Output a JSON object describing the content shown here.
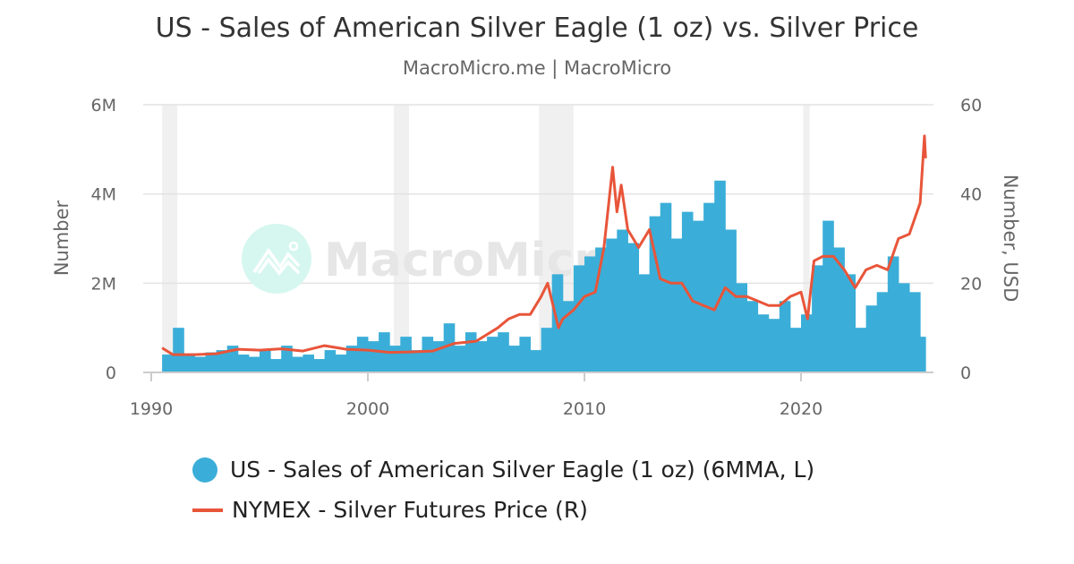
{
  "title": "US - Sales of American Silver Eagle (1 oz) vs. Silver Price",
  "subtitle": "MacroMicro.me | MacroMicro",
  "watermark": "MacroMicro",
  "colors": {
    "sales": "#3aaed8",
    "price": "#e8553a",
    "recession": "#f0f0f0"
  },
  "chart_data": {
    "type": "bar+line",
    "xlabel": "",
    "x_ticks": [
      "1990",
      "2000",
      "2010",
      "2020"
    ],
    "xlim": [
      1989.6,
      2026.1
    ],
    "y_left": {
      "label": "Number",
      "ticks": [
        "0",
        "2M",
        "4M",
        "6M"
      ],
      "lim": [
        0,
        6000000
      ]
    },
    "y_right": {
      "label": "Number, USD",
      "ticks": [
        "0",
        "20",
        "40",
        "60"
      ],
      "lim": [
        0,
        60
      ]
    },
    "grid": true,
    "legend_placement": "bottom",
    "recessions": [
      [
        1990.5,
        1991.2
      ],
      [
        2001.2,
        2001.9
      ],
      [
        2007.9,
        2009.5
      ],
      [
        2020.1,
        2020.4
      ]
    ],
    "series": [
      {
        "name": "US - Sales of American Silver Eagle (1 oz) (6MMA, L)",
        "type": "bar",
        "x": [
          1990.5,
          1991,
          1991.5,
          1992,
          1992.5,
          1993,
          1993.5,
          1994,
          1994.5,
          1995,
          1995.5,
          1996,
          1996.5,
          1997,
          1997.5,
          1998,
          1998.5,
          1999,
          1999.5,
          2000,
          2000.5,
          2001,
          2001.5,
          2002,
          2002.5,
          2003,
          2003.5,
          2004,
          2004.5,
          2005,
          2005.5,
          2006,
          2006.5,
          2007,
          2007.5,
          2008,
          2008.5,
          2009,
          2009.5,
          2010,
          2010.5,
          2011,
          2011.5,
          2012,
          2012.5,
          2013,
          2013.5,
          2014,
          2014.5,
          2015,
          2015.5,
          2016,
          2016.5,
          2017,
          2017.5,
          2018,
          2018.5,
          2019,
          2019.5,
          2020,
          2020.5,
          2021,
          2021.5,
          2022,
          2022.5,
          2023,
          2023.5,
          2024,
          2024.5,
          2025,
          2025.5
        ],
        "values": [
          400000,
          1000000,
          400000,
          350000,
          450000,
          500000,
          600000,
          400000,
          350000,
          500000,
          300000,
          600000,
          350000,
          400000,
          300000,
          500000,
          400000,
          600000,
          800000,
          700000,
          900000,
          600000,
          800000,
          500000,
          800000,
          700000,
          1100000,
          600000,
          900000,
          700000,
          800000,
          900000,
          600000,
          800000,
          500000,
          1000000,
          2200000,
          1600000,
          2400000,
          2600000,
          2800000,
          3000000,
          3200000,
          2900000,
          2200000,
          3500000,
          3800000,
          3000000,
          3600000,
          3400000,
          3800000,
          4300000,
          3200000,
          2000000,
          1600000,
          1300000,
          1200000,
          1600000,
          1000000,
          1300000,
          2400000,
          3400000,
          2800000,
          2200000,
          1000000,
          1500000,
          1800000,
          2600000,
          2000000,
          1800000,
          800000
        ]
      },
      {
        "name": "NYMEX - Silver Futures Price (R)",
        "type": "line",
        "x": [
          1990.5,
          1991,
          1992,
          1993,
          1994,
          1995,
          1996,
          1997,
          1998,
          1999,
          2000,
          2001,
          2002,
          2003,
          2004,
          2005,
          2006,
          2006.5,
          2007,
          2007.5,
          2008,
          2008.3,
          2008.8,
          2009,
          2009.5,
          2010,
          2010.5,
          2010.9,
          2011.3,
          2011.5,
          2011.7,
          2012,
          2012.5,
          2013,
          2013.5,
          2014,
          2014.5,
          2015,
          2015.5,
          2016,
          2016.5,
          2017,
          2017.5,
          2018,
          2018.5,
          2019,
          2019.5,
          2020,
          2020.3,
          2020.6,
          2021,
          2021.5,
          2022,
          2022.5,
          2023,
          2023.5,
          2024,
          2024.5,
          2025,
          2025.5,
          2025.7,
          2025.75
        ],
        "values": [
          5.5,
          4.0,
          4.0,
          4.2,
          5.2,
          5.0,
          5.3,
          4.8,
          6.0,
          5.2,
          5.0,
          4.5,
          4.6,
          4.8,
          6.5,
          7.0,
          10,
          12,
          13,
          13,
          17,
          20,
          10,
          12,
          14,
          17,
          18,
          28,
          46,
          36,
          42,
          32,
          28,
          32,
          21,
          20,
          20,
          16,
          15,
          14,
          19,
          17,
          17,
          16,
          15,
          15,
          17,
          18,
          12,
          25,
          26,
          26,
          23,
          19,
          23,
          24,
          23,
          30,
          31,
          38,
          53,
          48
        ]
      }
    ]
  }
}
